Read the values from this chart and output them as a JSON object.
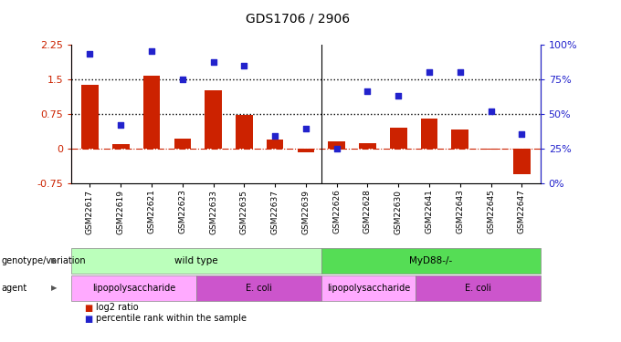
{
  "title": "GDS1706 / 2906",
  "samples": [
    "GSM22617",
    "GSM22619",
    "GSM22621",
    "GSM22623",
    "GSM22633",
    "GSM22635",
    "GSM22637",
    "GSM22639",
    "GSM22626",
    "GSM22628",
    "GSM22630",
    "GSM22641",
    "GSM22643",
    "GSM22645",
    "GSM22647"
  ],
  "log2_ratio": [
    1.38,
    0.1,
    1.58,
    0.22,
    1.25,
    0.73,
    0.2,
    -0.08,
    0.15,
    0.12,
    0.45,
    0.65,
    0.4,
    -0.02,
    -0.55
  ],
  "pct_rank": [
    93,
    42,
    95,
    75,
    87,
    85,
    34,
    39,
    25,
    66,
    63,
    80,
    80,
    52,
    35
  ],
  "bar_color": "#cc2200",
  "dot_color": "#2222cc",
  "hline_y1": 1.5,
  "hline_y2": 0.75,
  "ylim_left": [
    -0.75,
    2.25
  ],
  "ylim_right": [
    0,
    100
  ],
  "yticks_left": [
    -0.75,
    0,
    0.75,
    1.5,
    2.25
  ],
  "yticks_right": [
    0,
    25,
    50,
    75,
    100
  ],
  "ytick_labels_left": [
    "-0.75",
    "0",
    "0.75",
    "1.5",
    "2.25"
  ],
  "ytick_labels_right": [
    "0%",
    "25%",
    "50%",
    "75%",
    "100%"
  ],
  "genotype_blocks": [
    {
      "label": "wild type",
      "start": 0,
      "end": 7,
      "color": "#bbffbb"
    },
    {
      "label": "MyD88-/-",
      "start": 8,
      "end": 14,
      "color": "#55dd55"
    }
  ],
  "agent_blocks": [
    {
      "label": "lipopolysaccharide",
      "start": 0,
      "end": 3,
      "color": "#ffaaff"
    },
    {
      "label": "E. coli",
      "start": 4,
      "end": 7,
      "color": "#cc55cc"
    },
    {
      "label": "lipopolysaccharide",
      "start": 8,
      "end": 10,
      "color": "#ffaaff"
    },
    {
      "label": "E. coli",
      "start": 11,
      "end": 14,
      "color": "#cc55cc"
    }
  ],
  "legend": [
    {
      "label": "log2 ratio",
      "color": "#cc2200"
    },
    {
      "label": "percentile rank within the sample",
      "color": "#2222cc"
    }
  ],
  "genotype_row_label": "genotype/variation",
  "agent_row_label": "agent",
  "left_axis_color": "#cc2200",
  "right_axis_color": "#2222cc",
  "group_sep": 7.5
}
